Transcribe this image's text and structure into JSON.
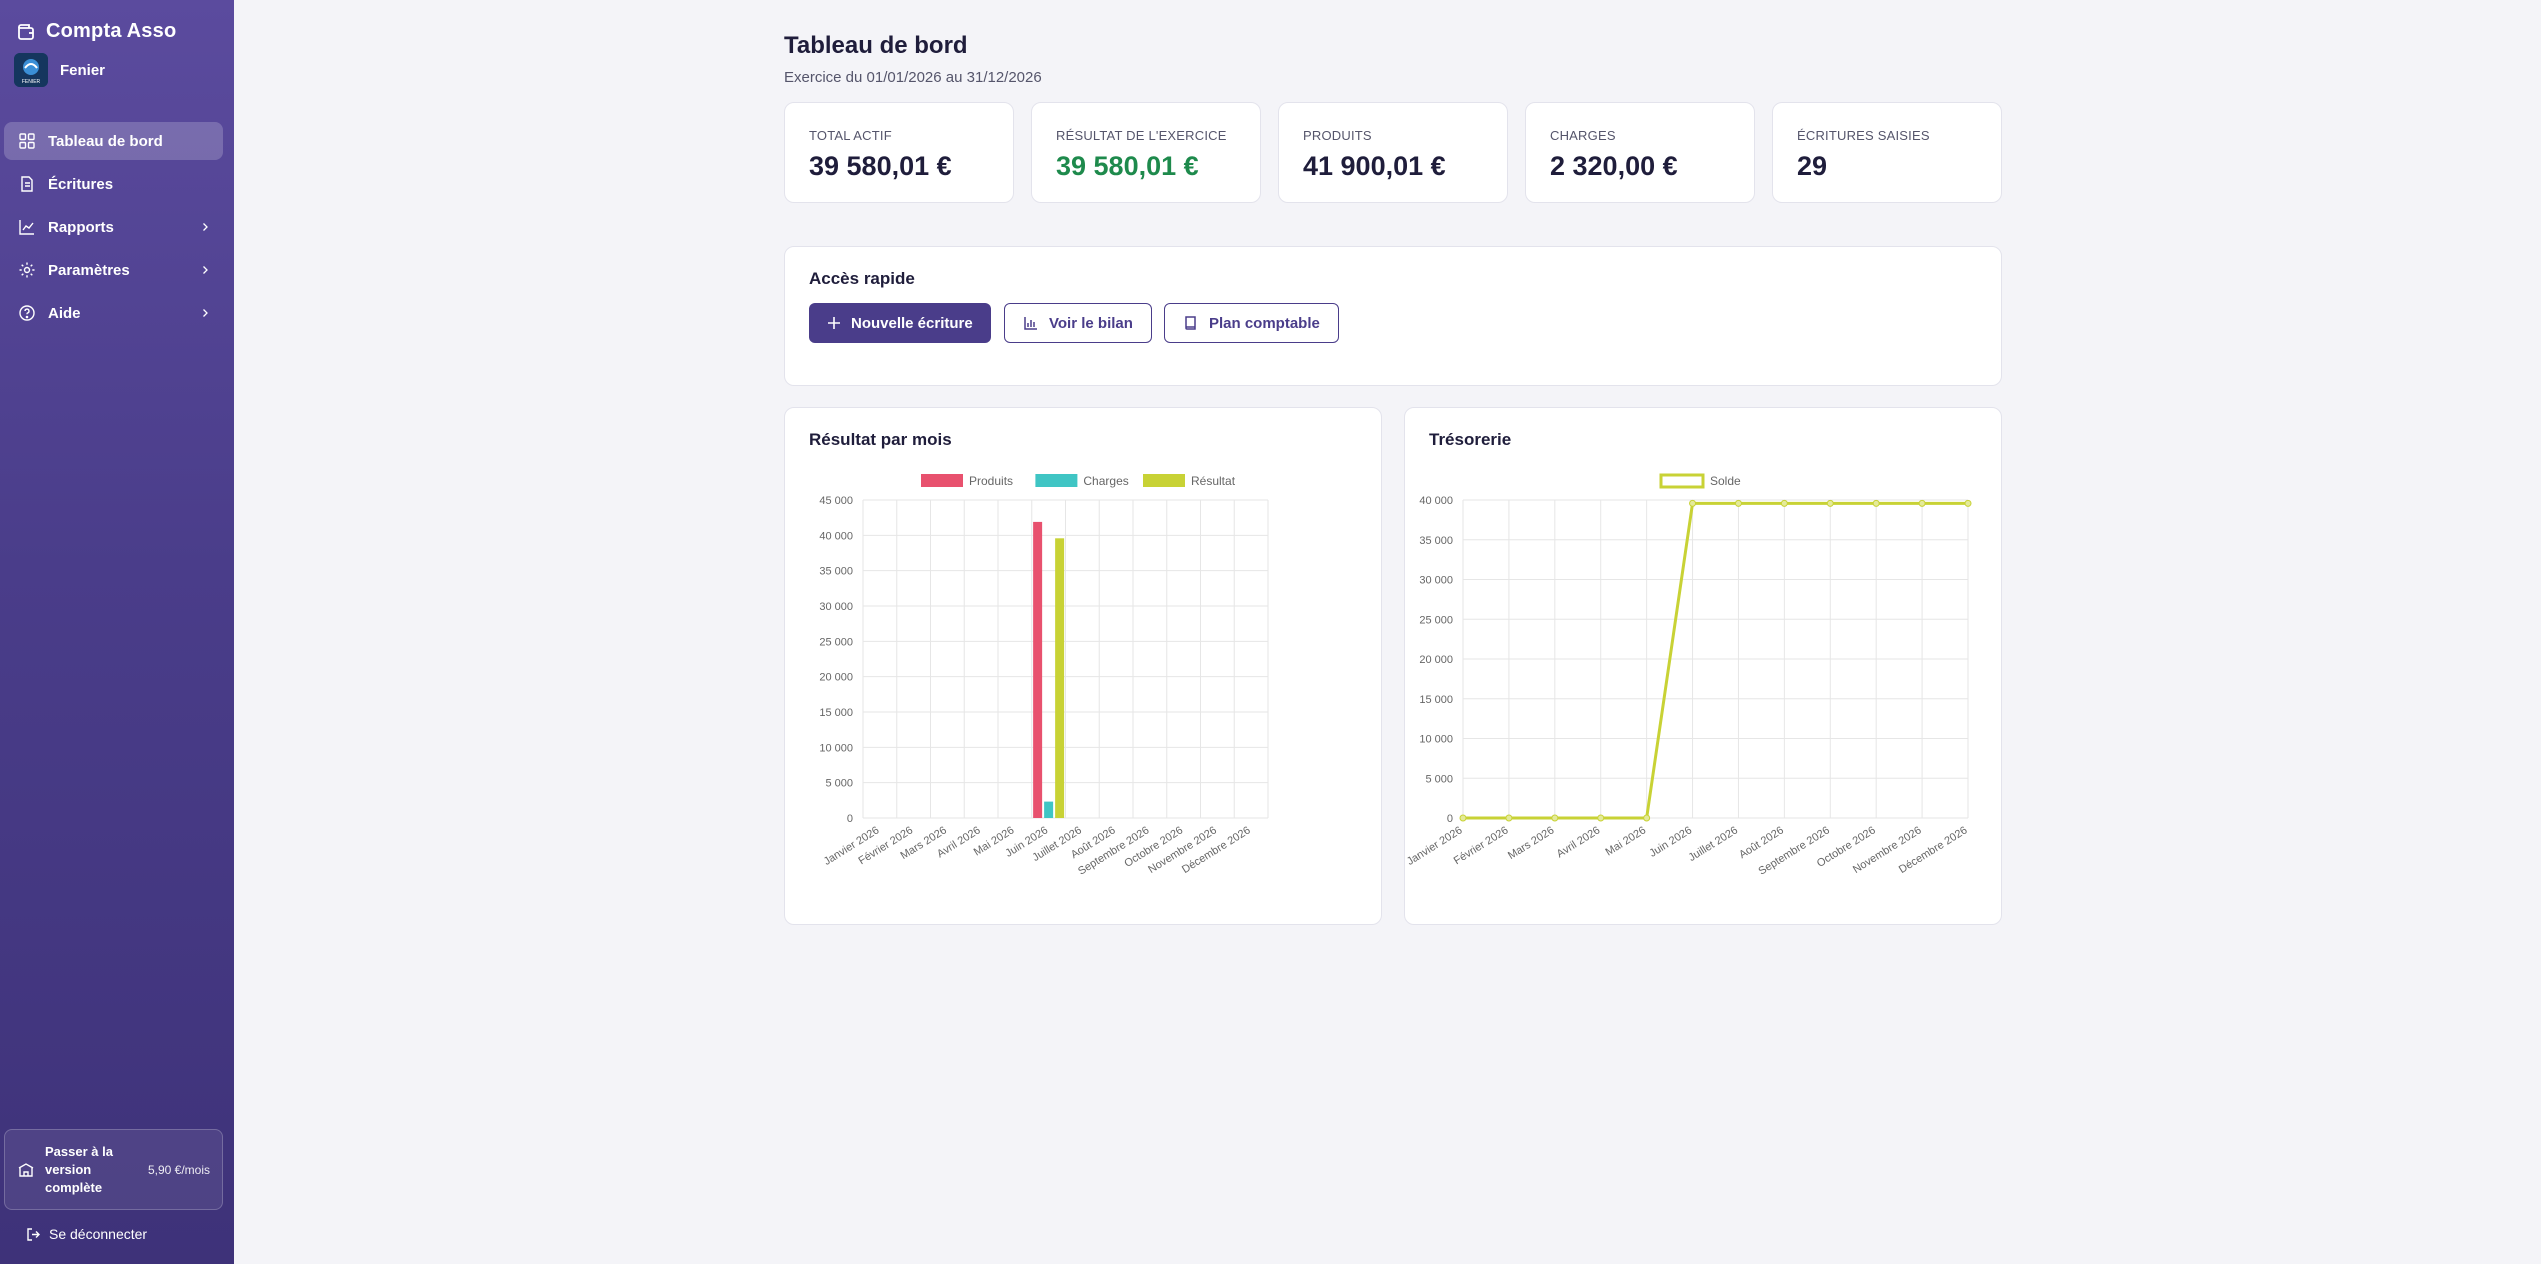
{
  "app": {
    "name": "Compta Asso",
    "org_name": "Fenier",
    "org_logo_text": "FENIER"
  },
  "sidebar": {
    "items": [
      {
        "label": "Tableau de bord",
        "icon": "dashboard-grid-icon",
        "active": true,
        "has_chevron": false
      },
      {
        "label": "Écritures",
        "icon": "document-icon",
        "active": false,
        "has_chevron": false
      },
      {
        "label": "Rapports",
        "icon": "line-chart-icon",
        "active": false,
        "has_chevron": true
      },
      {
        "label": "Paramètres",
        "icon": "gear-icon",
        "active": false,
        "has_chevron": true
      },
      {
        "label": "Aide",
        "icon": "help-circle-icon",
        "active": false,
        "has_chevron": true
      }
    ],
    "upgrade": {
      "label": "Passer à la version complète",
      "price": "5,90 €/mois"
    },
    "logout_label": "Se déconnecter"
  },
  "header": {
    "title": "Tableau de bord",
    "subtitle": "Exercice du 01/01/2026 au 31/12/2026"
  },
  "stats": [
    {
      "label": "Total actif",
      "value": "39 580,01 €",
      "highlight": false
    },
    {
      "label": "Résultat de l'exercice",
      "value": "39 580,01 €",
      "highlight": true
    },
    {
      "label": "Produits",
      "value": "41 900,01 €",
      "highlight": false
    },
    {
      "label": "Charges",
      "value": "2 320,00 €",
      "highlight": false
    },
    {
      "label": "Écritures saisies",
      "value": "29",
      "highlight": false
    }
  ],
  "quick_access": {
    "title": "Accès rapide",
    "buttons": [
      {
        "label": "Nouvelle écriture",
        "icon": "plus-icon",
        "style": "primary"
      },
      {
        "label": "Voir le bilan",
        "icon": "bar-chart-icon",
        "style": "outline"
      },
      {
        "label": "Plan comptable",
        "icon": "book-icon",
        "style": "outline"
      }
    ]
  },
  "colors": {
    "accent": "#4a3d8a",
    "positive": "#1e8a4c",
    "produits": "#e8516e",
    "charges": "#3fc5c4",
    "resultat": "#c8d235",
    "solde": "#c8d235"
  },
  "chart_data": [
    {
      "type": "bar",
      "title": "Résultat par mois",
      "categories": [
        "Janvier 2026",
        "Février 2026",
        "Mars 2026",
        "Avril 2026",
        "Mai 2026",
        "Juin 2026",
        "Juillet 2026",
        "Août 2026",
        "Septembre 2026",
        "Octobre 2026",
        "Novembre 2026",
        "Décembre 2026"
      ],
      "series": [
        {
          "name": "Produits",
          "color": "#e8516e",
          "values": [
            0,
            0,
            0,
            0,
            0,
            41900.01,
            0,
            0,
            0,
            0,
            0,
            0
          ]
        },
        {
          "name": "Charges",
          "color": "#3fc5c4",
          "values": [
            0,
            0,
            0,
            0,
            0,
            2320,
            0,
            0,
            0,
            0,
            0,
            0
          ]
        },
        {
          "name": "Résultat",
          "color": "#c8d235",
          "values": [
            0,
            0,
            0,
            0,
            0,
            39580.01,
            0,
            0,
            0,
            0,
            0,
            0
          ]
        }
      ],
      "ylim": [
        0,
        45000
      ],
      "yticks": [
        "45 000",
        "40 000",
        "35 000",
        "30 000",
        "25 000",
        "20 000",
        "15 000",
        "10 000",
        "5 000",
        "0"
      ],
      "ytick_values": [
        45000,
        40000,
        35000,
        30000,
        25000,
        20000,
        15000,
        10000,
        5000,
        0
      ],
      "grid": true,
      "legend": "top"
    },
    {
      "type": "line",
      "title": "Trésorerie",
      "categories": [
        "Janvier 2026",
        "Février 2026",
        "Mars 2026",
        "Avril 2026",
        "Mai 2026",
        "Juin 2026",
        "Juillet 2026",
        "Août 2026",
        "Septembre 2026",
        "Octobre 2026",
        "Novembre 2026",
        "Décembre 2026"
      ],
      "series": [
        {
          "name": "Solde",
          "color": "#c8d235",
          "values": [
            0,
            0,
            0,
            0,
            0,
            39580.01,
            39580.01,
            39580.01,
            39580.01,
            39580.01,
            39580.01,
            39580.01
          ]
        }
      ],
      "ylim": [
        0,
        40000
      ],
      "yticks": [
        "40 000",
        "35 000",
        "30 000",
        "25 000",
        "20 000",
        "15 000",
        "10 000",
        "5 000",
        "0"
      ],
      "ytick_values": [
        40000,
        35000,
        30000,
        25000,
        20000,
        15000,
        10000,
        5000,
        0
      ],
      "grid": true,
      "legend": "top"
    }
  ]
}
